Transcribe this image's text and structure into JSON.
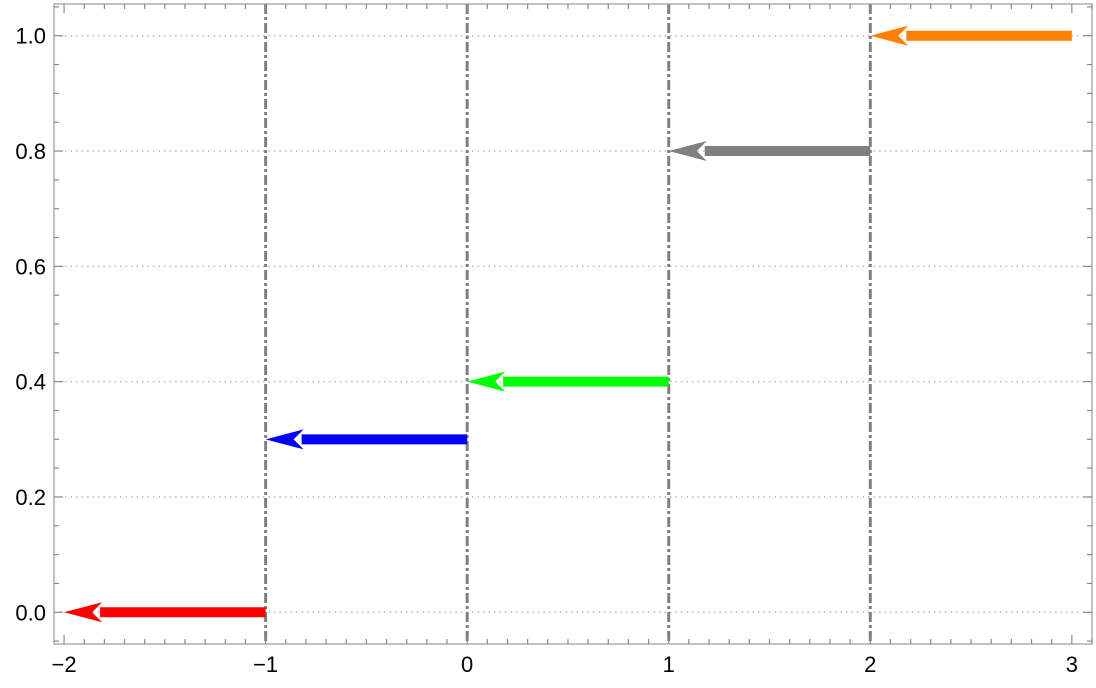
{
  "chart_data": {
    "type": "arrows",
    "xlim": [
      -2.05,
      3.1
    ],
    "ylim": [
      -0.055,
      1.055
    ],
    "x_ticks": [
      -2,
      -1,
      0,
      1,
      2,
      3
    ],
    "x_tick_labels": [
      "−2",
      "−1",
      "0",
      "1",
      "2",
      "3"
    ],
    "y_ticks": [
      0.0,
      0.2,
      0.4,
      0.6,
      0.8,
      1.0
    ],
    "y_tick_labels": [
      "0.0",
      "0.2",
      "0.4",
      "0.6",
      "0.8",
      "1.0"
    ],
    "grid": "horizontal dotted",
    "vertical_reference_lines": [
      -1,
      0,
      1,
      2
    ],
    "arrows": [
      {
        "from": [
          -1,
          0.0
        ],
        "to": [
          -2,
          0.0
        ],
        "color": "#ff0000"
      },
      {
        "from": [
          0,
          0.3
        ],
        "to": [
          -1,
          0.3
        ],
        "color": "#0000ff"
      },
      {
        "from": [
          1,
          0.4
        ],
        "to": [
          0,
          0.4
        ],
        "color": "#00ff00"
      },
      {
        "from": [
          2,
          0.8
        ],
        "to": [
          1,
          0.8
        ],
        "color": "#808080"
      },
      {
        "from": [
          3,
          1.0
        ],
        "to": [
          2,
          1.0
        ],
        "color": "#ff8000"
      }
    ]
  }
}
